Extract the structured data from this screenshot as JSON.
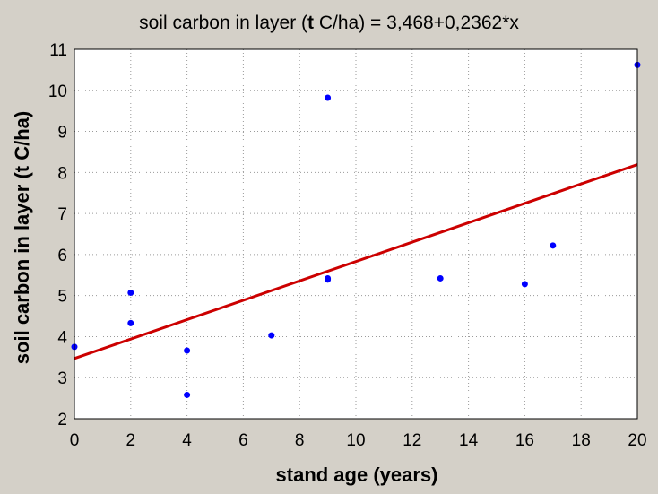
{
  "chart_data": {
    "type": "scatter",
    "title_parts": [
      "soil carbon in layer (",
      "t",
      " C/ha) = 3,468+0,2362*x"
    ],
    "xlabel": "stand age (years)",
    "ylabel": "soil carbon in layer (t C/ha)",
    "xlim": [
      0,
      20
    ],
    "ylim": [
      2,
      11
    ],
    "xticks": [
      "0",
      "2",
      "4",
      "6",
      "8",
      "10",
      "12",
      "14",
      "16",
      "18",
      "20"
    ],
    "yticks": [
      "2",
      "3",
      "4",
      "5",
      "6",
      "7",
      "8",
      "9",
      "10",
      "11"
    ],
    "grid": true,
    "points": [
      {
        "x": 0,
        "y": 3.75
      },
      {
        "x": 2,
        "y": 5.07
      },
      {
        "x": 2,
        "y": 4.33
      },
      {
        "x": 4,
        "y": 3.66
      },
      {
        "x": 4,
        "y": 2.58
      },
      {
        "x": 7,
        "y": 4.03
      },
      {
        "x": 9,
        "y": 9.82
      },
      {
        "x": 9,
        "y": 5.42
      },
      {
        "x": 9,
        "y": 5.39
      },
      {
        "x": 13,
        "y": 5.42
      },
      {
        "x": 16,
        "y": 5.28
      },
      {
        "x": 17,
        "y": 6.22
      },
      {
        "x": 20,
        "y": 10.62
      }
    ],
    "fit": {
      "intercept": 3.468,
      "slope": 0.2362
    },
    "colors": {
      "points": "#0000ff",
      "fit_line": "#cc0000",
      "plot_background": "#ffffff",
      "outer_background": "#d4d0c8",
      "grid": "#9a9a9a"
    }
  }
}
